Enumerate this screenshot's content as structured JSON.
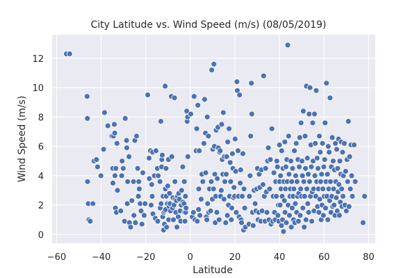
{
  "chart_data": {
    "type": "scatter",
    "title": "City Latitude vs. Wind Speed (m/s) (08/05/2019)",
    "xlabel": "Latitude",
    "ylabel": "Wind Speed (m/s)",
    "xlim": [
      -62,
      83
    ],
    "ylim": [
      -0.6,
      13.6
    ],
    "xticks": [
      -60,
      -40,
      -20,
      0,
      20,
      40,
      60,
      80
    ],
    "yticks": [
      0,
      2,
      4,
      6,
      8,
      10,
      12
    ],
    "grid": true,
    "colors": {
      "plot_background": "#eaeaf2",
      "grid": "#ffffff",
      "marker_fill": "#4c72b0",
      "marker_edge": "#ffffff"
    },
    "points": [
      [
        -55.6,
        12.3
      ],
      [
        -54.1,
        12.3
      ],
      [
        -46.3,
        9.4
      ],
      [
        -46.2,
        7.9
      ],
      [
        -46.1,
        3.6
      ],
      [
        -45.8,
        2.1
      ],
      [
        -45.5,
        1.0
      ],
      [
        -44.9,
        0.9
      ],
      [
        -43.7,
        2.1
      ],
      [
        -43.2,
        5.0
      ],
      [
        -42.1,
        5.1
      ],
      [
        -41.6,
        4.6
      ],
      [
        -40.1,
        4.0
      ],
      [
        -38.9,
        5.8
      ],
      [
        -38.5,
        8.3
      ],
      [
        -37.0,
        7.4
      ],
      [
        -35.2,
        6.7
      ],
      [
        -34.8,
        4.5
      ],
      [
        -34.7,
        3.5
      ],
      [
        -34.5,
        6.7
      ],
      [
        -34.1,
        7.5
      ],
      [
        -33.9,
        6.9
      ],
      [
        -33.8,
        4.0
      ],
      [
        -33.6,
        1.8
      ],
      [
        -33.4,
        4.5
      ],
      [
        -33.2,
        1.5
      ],
      [
        -32.9,
        6.2
      ],
      [
        -32.7,
        3.0
      ],
      [
        -31.2,
        1.6
      ],
      [
        -30.8,
        4.0
      ],
      [
        -30.6,
        5.0
      ],
      [
        -30.1,
        4.5
      ],
      [
        -29.5,
        0.9
      ],
      [
        -29.2,
        7.9
      ],
      [
        -28.6,
        6.4
      ],
      [
        -28.5,
        5.9
      ],
      [
        -28.3,
        2.1
      ],
      [
        -28.1,
        3.6
      ],
      [
        -27.5,
        5.3
      ],
      [
        -27.3,
        0.8
      ],
      [
        -26.8,
        0.5
      ],
      [
        -26.2,
        2.3
      ],
      [
        -25.5,
        3.6
      ],
      [
        -25.3,
        1.3
      ],
      [
        -24.9,
        6.4
      ],
      [
        -24.6,
        0.8
      ],
      [
        -24.1,
        6.7
      ],
      [
        -23.6,
        4.5
      ],
      [
        -23.3,
        2.6
      ],
      [
        -23.1,
        3.6
      ],
      [
        -22.9,
        3.1
      ],
      [
        -22.5,
        2.1
      ],
      [
        -22.1,
        1.6
      ],
      [
        -21.7,
        0.7
      ],
      [
        -21.3,
        4.2
      ],
      [
        -20.7,
        1.3
      ],
      [
        -20.3,
        2.1
      ],
      [
        -19.1,
        9.5
      ],
      [
        -18.5,
        5.2
      ],
      [
        -18.4,
        3.8
      ],
      [
        -17.9,
        5.7
      ],
      [
        -17.6,
        2.0
      ],
      [
        -17.3,
        3.4
      ],
      [
        -17.1,
        2.6
      ],
      [
        -16.9,
        5.6
      ],
      [
        -16.8,
        1.4
      ],
      [
        -16.1,
        4.0
      ],
      [
        -15.7,
        1.1
      ],
      [
        -15.4,
        5.7
      ],
      [
        -14.8,
        4.5
      ],
      [
        -14.6,
        0.9
      ],
      [
        -14.4,
        4.0
      ],
      [
        -13.6,
        3.6
      ],
      [
        -13.5,
        1.8
      ],
      [
        -13.2,
        7.7
      ],
      [
        -13.1,
        2.1
      ],
      [
        -12.9,
        4.6
      ],
      [
        -12.8,
        5.1
      ],
      [
        -12.6,
        5.4
      ],
      [
        -12.4,
        1.2
      ],
      [
        -12.2,
        2.6
      ],
      [
        -12.0,
        0.3
      ],
      [
        -11.9,
        1.5
      ],
      [
        -11.6,
        0.7
      ],
      [
        -11.5,
        1.6
      ],
      [
        -11.3,
        10.1
      ],
      [
        -11.2,
        3.1
      ],
      [
        -11.1,
        1.7
      ],
      [
        -10.9,
        4.5
      ],
      [
        -10.8,
        2.6
      ],
      [
        -10.6,
        0.5
      ],
      [
        -10.4,
        2.1
      ],
      [
        -10.3,
        2.1
      ],
      [
        -10.1,
        3.3
      ],
      [
        -9.8,
        5.1
      ],
      [
        -9.7,
        1.0
      ],
      [
        -9.5,
        1.9
      ],
      [
        -9.3,
        2.8
      ],
      [
        -9.1,
        2.1
      ],
      [
        -8.9,
        1.6
      ],
      [
        -8.5,
        9.4
      ],
      [
        -8.3,
        5.3
      ],
      [
        -8.0,
        1.8
      ],
      [
        -7.8,
        2.5
      ],
      [
        -7.6,
        1.0
      ],
      [
        -7.3,
        2.0
      ],
      [
        -7.1,
        9.3
      ],
      [
        -6.9,
        3.6
      ],
      [
        -6.8,
        2.4
      ],
      [
        -6.5,
        1.5
      ],
      [
        -6.2,
        2.3
      ],
      [
        -6.0,
        0.5
      ],
      [
        -5.7,
        2.6
      ],
      [
        -5.4,
        1.2
      ],
      [
        -5.2,
        2.8
      ],
      [
        -4.9,
        2.4
      ],
      [
        -4.6,
        1.6
      ],
      [
        -4.3,
        0.9
      ],
      [
        -4.1,
        2.0
      ],
      [
        -3.9,
        3.0
      ],
      [
        -3.4,
        4.6
      ],
      [
        -3.3,
        2.2
      ],
      [
        -2.8,
        2.1
      ],
      [
        -2.7,
        3.6
      ],
      [
        -2.6,
        1.5
      ],
      [
        -2.4,
        0.9
      ],
      [
        -2.2,
        2.6
      ],
      [
        -2.1,
        1.5
      ],
      [
        -1.9,
        1.8
      ],
      [
        -1.6,
        8.4
      ],
      [
        -1.4,
        7.7
      ],
      [
        -1.2,
        8.0
      ],
      [
        -1.1,
        5.3
      ],
      [
        0.2,
        8.2
      ],
      [
        0.9,
        1.2
      ],
      [
        1.4,
        1.5
      ],
      [
        1.7,
        9.4
      ],
      [
        2.1,
        1.0
      ],
      [
        2.6,
        5.7
      ],
      [
        2.9,
        7.2
      ],
      [
        3.1,
        0.9
      ],
      [
        3.4,
        8.8
      ],
      [
        3.7,
        1.7
      ],
      [
        3.8,
        3.1
      ],
      [
        4.0,
        5.7
      ],
      [
        4.3,
        1.3
      ],
      [
        4.9,
        2.4
      ],
      [
        5.2,
        4.1
      ],
      [
        5.6,
        3.6
      ],
      [
        6.1,
        6.2
      ],
      [
        6.4,
        9.2
      ],
      [
        6.8,
        6.9
      ],
      [
        6.9,
        4.2
      ],
      [
        7.2,
        1.2
      ],
      [
        7.4,
        1.0
      ],
      [
        7.6,
        8.0
      ],
      [
        7.8,
        2.1
      ],
      [
        8.1,
        6.7
      ],
      [
        8.3,
        1.5
      ],
      [
        8.6,
        3.1
      ],
      [
        9.1,
        1.6
      ],
      [
        9.4,
        3.6
      ],
      [
        9.6,
        11.2
      ],
      [
        9.9,
        2.4
      ],
      [
        10.1,
        5.8
      ],
      [
        10.4,
        3.1
      ],
      [
        10.6,
        11.6
      ],
      [
        10.8,
        6.0
      ],
      [
        11.0,
        4.1
      ],
      [
        11.2,
        0.8
      ],
      [
        11.4,
        2.6
      ],
      [
        11.6,
        7.1
      ],
      [
        11.9,
        1.5
      ],
      [
        12.1,
        3.8
      ],
      [
        12.4,
        7.3
      ],
      [
        12.6,
        5.9
      ],
      [
        12.9,
        1.0
      ],
      [
        13.1,
        5.6
      ],
      [
        13.4,
        5.7
      ],
      [
        13.6,
        2.6
      ],
      [
        13.9,
        3.0
      ],
      [
        14.1,
        7.5
      ],
      [
        14.3,
        5.1
      ],
      [
        14.6,
        4.1
      ],
      [
        14.8,
        8.3
      ],
      [
        15.1,
        2.4
      ],
      [
        15.3,
        5.3
      ],
      [
        15.5,
        3.6
      ],
      [
        15.9,
        0.8
      ],
      [
        16.1,
        4.1
      ],
      [
        16.3,
        5.3
      ],
      [
        16.6,
        1.3
      ],
      [
        16.8,
        6.3
      ],
      [
        17.1,
        2.0
      ],
      [
        17.4,
        7.2
      ],
      [
        17.6,
        2.6
      ],
      [
        17.9,
        4.9
      ],
      [
        18.1,
        3.6
      ],
      [
        18.4,
        1.0
      ],
      [
        18.6,
        1.8
      ],
      [
        18.9,
        5.5
      ],
      [
        19.1,
        4.5
      ],
      [
        19.4,
        2.5
      ],
      [
        19.6,
        3.2
      ],
      [
        19.9,
        2.6
      ],
      [
        20.1,
        6.5
      ],
      [
        20.4,
        4.3
      ],
      [
        20.6,
        1.5
      ],
      [
        20.9,
        10.4
      ],
      [
        21.1,
        9.8
      ],
      [
        21.4,
        5.7
      ],
      [
        21.6,
        2.6
      ],
      [
        21.9,
        1.2
      ],
      [
        22.1,
        9.5
      ],
      [
        22.4,
        3.5
      ],
      [
        22.6,
        4.4
      ],
      [
        22.8,
        1.0
      ],
      [
        23.0,
        0.8
      ],
      [
        23.3,
        2.6
      ],
      [
        23.6,
        5.5
      ],
      [
        23.9,
        0.3
      ],
      [
        24.1,
        3.1
      ],
      [
        24.4,
        1.8
      ],
      [
        24.7,
        0.5
      ],
      [
        26.3,
        0.7
      ],
      [
        26.5,
        2.6
      ],
      [
        26.8,
        4.0
      ],
      [
        27.1,
        6.7
      ],
      [
        27.4,
        10.3
      ],
      [
        27.6,
        8.2
      ],
      [
        27.9,
        1.5
      ],
      [
        28.2,
        0.6
      ],
      [
        28.6,
        3.0
      ],
      [
        29.1,
        2.1
      ],
      [
        29.4,
        1.6
      ],
      [
        29.8,
        3.1
      ],
      [
        30.1,
        4.5
      ],
      [
        30.4,
        1.0
      ],
      [
        30.7,
        1.5
      ],
      [
        30.9,
        4.1
      ],
      [
        31.2,
        3.2
      ],
      [
        31.6,
        0.9
      ],
      [
        31.9,
        4.4
      ],
      [
        32.2,
        1.6
      ],
      [
        32.6,
        3.4
      ],
      [
        32.9,
        10.8
      ],
      [
        33.2,
        2.6
      ],
      [
        33.5,
        0.9
      ],
      [
        33.8,
        4.5
      ],
      [
        34.1,
        2.9
      ],
      [
        34.4,
        1.5
      ],
      [
        34.7,
        5.0
      ],
      [
        35.0,
        5.9
      ],
      [
        35.3,
        1.0
      ],
      [
        35.6,
        3.1
      ],
      [
        35.9,
        5.1
      ],
      [
        36.2,
        0.7
      ],
      [
        36.6,
        7.2
      ],
      [
        36.9,
        0.9
      ],
      [
        37.2,
        2.6
      ],
      [
        37.5,
        4.2
      ],
      [
        37.8,
        1.5
      ],
      [
        38.1,
        1.0
      ],
      [
        38.3,
        3.6
      ],
      [
        38.6,
        2.6
      ],
      [
        38.8,
        5.0
      ],
      [
        39.1,
        4.6
      ],
      [
        39.3,
        1.3
      ],
      [
        39.5,
        2.0
      ],
      [
        39.7,
        0.9
      ],
      [
        40.0,
        6.1
      ],
      [
        40.1,
        3.6
      ],
      [
        40.3,
        2.0
      ],
      [
        40.5,
        4.0
      ],
      [
        40.7,
        3.1
      ],
      [
        40.9,
        0.6
      ],
      [
        41.0,
        5.7
      ],
      [
        41.2,
        2.6
      ],
      [
        41.4,
        1.0
      ],
      [
        41.6,
        4.5
      ],
      [
        41.8,
        0.2
      ],
      [
        42.0,
        3.6
      ],
      [
        42.2,
        2.3
      ],
      [
        42.4,
        6.3
      ],
      [
        42.5,
        1.5
      ],
      [
        42.7,
        3.1
      ],
      [
        42.9,
        4.6
      ],
      [
        43.1,
        0.8
      ],
      [
        43.3,
        5.1
      ],
      [
        43.5,
        3.6
      ],
      [
        43.7,
        12.9
      ],
      [
        43.9,
        2.0
      ],
      [
        44.1,
        6.7
      ],
      [
        44.3,
        4.1
      ],
      [
        44.5,
        1.3
      ],
      [
        44.7,
        2.6
      ],
      [
        44.9,
        3.1
      ],
      [
        45.1,
        5.0
      ],
      [
        45.3,
        0.5
      ],
      [
        45.5,
        3.6
      ],
      [
        45.7,
        1.8
      ],
      [
        45.9,
        4.5
      ],
      [
        46.1,
        2.6
      ],
      [
        46.3,
        1.0
      ],
      [
        46.5,
        3.1
      ],
      [
        46.7,
        5.7
      ],
      [
        46.9,
        0.8
      ],
      [
        47.1,
        2.1
      ],
      [
        47.3,
        4.0
      ],
      [
        47.5,
        6.2
      ],
      [
        47.7,
        1.5
      ],
      [
        47.9,
        3.6
      ],
      [
        48.1,
        2.6
      ],
      [
        48.3,
        5.1
      ],
      [
        48.5,
        0.9
      ],
      [
        48.7,
        2.8
      ],
      [
        48.9,
        4.6
      ],
      [
        49.1,
        6.6
      ],
      [
        49.3,
        1.3
      ],
      [
        49.5,
        3.1
      ],
      [
        49.7,
        7.6
      ],
      [
        49.9,
        2.6
      ],
      [
        50.1,
        5.0
      ],
      [
        50.3,
        4.0
      ],
      [
        50.5,
        1.8
      ],
      [
        50.7,
        8.4
      ],
      [
        50.9,
        3.6
      ],
      [
        51.1,
        0.5
      ],
      [
        51.3,
        2.6
      ],
      [
        51.5,
        6.7
      ],
      [
        51.7,
        4.5
      ],
      [
        51.9,
        1.0
      ],
      [
        52.1,
        10.1
      ],
      [
        52.3,
        3.1
      ],
      [
        52.5,
        5.2
      ],
      [
        52.7,
        2.1
      ],
      [
        52.9,
        4.1
      ],
      [
        53.1,
        1.5
      ],
      [
        53.3,
        8.2
      ],
      [
        53.5,
        3.6
      ],
      [
        53.7,
        10.0
      ],
      [
        53.9,
        2.6
      ],
      [
        54.1,
        6.1
      ],
      [
        54.3,
        4.6
      ],
      [
        54.5,
        0.9
      ],
      [
        54.7,
        2.9
      ],
      [
        54.9,
        7.6
      ],
      [
        55.1,
        5.0
      ],
      [
        55.3,
        3.1
      ],
      [
        55.5,
        1.6
      ],
      [
        55.7,
        8.2
      ],
      [
        55.9,
        4.0
      ],
      [
        56.1,
        6.2
      ],
      [
        56.3,
        2.6
      ],
      [
        56.5,
        9.8
      ],
      [
        56.7,
        3.6
      ],
      [
        56.9,
        5.2
      ],
      [
        57.1,
        1.9
      ],
      [
        57.3,
        4.5
      ],
      [
        57.5,
        3.1
      ],
      [
        57.7,
        1.5
      ],
      [
        57.9,
        6.7
      ],
      [
        58.1,
        2.4
      ],
      [
        58.3,
        5.6
      ],
      [
        58.5,
        3.6
      ],
      [
        58.7,
        1.0
      ],
      [
        58.9,
        4.1
      ],
      [
        59.1,
        2.0
      ],
      [
        59.3,
        6.2
      ],
      [
        59.5,
        3.1
      ],
      [
        59.7,
        1.3
      ],
      [
        59.9,
        4.6
      ],
      [
        60.1,
        2.6
      ],
      [
        60.3,
        5.1
      ],
      [
        60.5,
        7.6
      ],
      [
        60.7,
        1.8
      ],
      [
        60.9,
        3.6
      ],
      [
        61.1,
        10.3
      ],
      [
        61.3,
        2.6
      ],
      [
        61.5,
        4.1
      ],
      [
        61.7,
        1.0
      ],
      [
        61.9,
        6.0
      ],
      [
        62.1,
        3.1
      ],
      [
        62.3,
        5.6
      ],
      [
        62.5,
        2.3
      ],
      [
        62.7,
        9.3
      ],
      [
        62.9,
        3.6
      ],
      [
        63.1,
        1.5
      ],
      [
        63.3,
        4.6
      ],
      [
        63.5,
        2.6
      ],
      [
        63.7,
        6.6
      ],
      [
        63.9,
        1.9
      ],
      [
        64.1,
        5.0
      ],
      [
        64.3,
        3.1
      ],
      [
        64.5,
        2.0
      ],
      [
        64.7,
        4.4
      ],
      [
        64.9,
        1.3
      ],
      [
        65.1,
        6.2
      ],
      [
        65.3,
        3.6
      ],
      [
        65.5,
        2.5
      ],
      [
        65.7,
        5.8
      ],
      [
        65.9,
        1.6
      ],
      [
        66.1,
        4.5
      ],
      [
        66.3,
        2.9
      ],
      [
        66.5,
        6.5
      ],
      [
        66.7,
        3.4
      ],
      [
        66.9,
        1.3
      ],
      [
        67.1,
        5.0
      ],
      [
        67.3,
        2.2
      ],
      [
        67.5,
        4.1
      ],
      [
        67.7,
        6.3
      ],
      [
        67.9,
        3.1
      ],
      [
        68.1,
        1.9
      ],
      [
        68.3,
        5.6
      ],
      [
        68.5,
        2.6
      ],
      [
        68.7,
        4.0
      ],
      [
        69.1,
        6.2
      ],
      [
        69.4,
        2.0
      ],
      [
        69.7,
        4.3
      ],
      [
        70.0,
        1.6
      ],
      [
        70.3,
        5.1
      ],
      [
        70.6,
        3.6
      ],
      [
        70.9,
        7.7
      ],
      [
        71.2,
        1.9
      ],
      [
        71.5,
        5.3
      ],
      [
        71.8,
        3.1
      ],
      [
        72.1,
        6.1
      ],
      [
        72.4,
        4.0
      ],
      [
        72.7,
        2.6
      ],
      [
        73.5,
        6.1
      ],
      [
        74.0,
        3.6
      ],
      [
        77.5,
        0.8
      ],
      [
        78.2,
        2.6
      ]
    ]
  }
}
